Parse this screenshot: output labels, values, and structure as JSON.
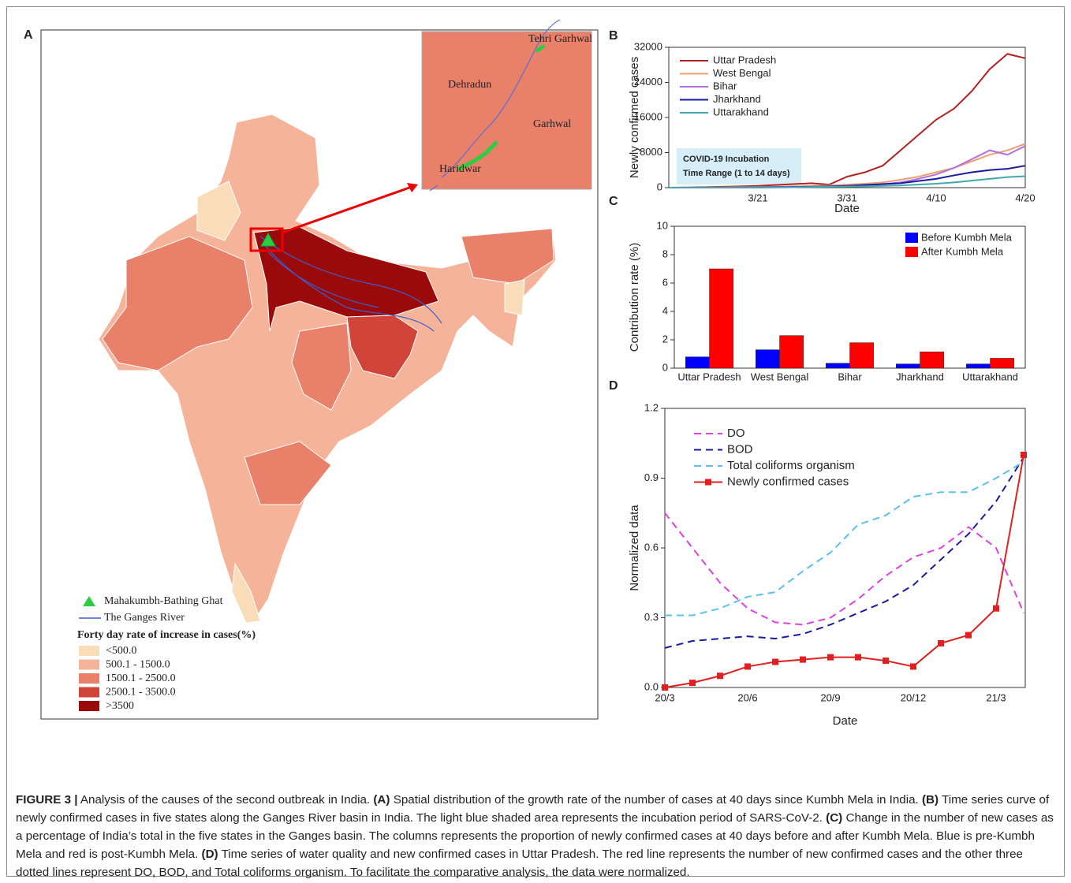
{
  "map": {
    "panel_label": "A",
    "inset_labels": [
      "Tehri Garhwal",
      "Dehradun",
      "Garhwal",
      "Haridwar"
    ],
    "ghat_label": "Mahakumbh-Bathing Ghat",
    "river_label": "The Ganges River",
    "legend_title": "Forty day rate of increase in cases(%)",
    "classes": [
      {
        "label": "<500.0",
        "color": "#f9ddb8"
      },
      {
        "label": "500.1 - 1500.0",
        "color": "#f5b49a"
      },
      {
        "label": "1500.1 - 2500.0",
        "color": "#e8806a"
      },
      {
        "label": "2500.1 - 3500.0",
        "color": "#d0443a"
      },
      {
        "label": ">3500",
        "color": "#9b0a0a"
      }
    ]
  },
  "chart_data": [
    {
      "type": "line",
      "panel_label": "B",
      "y_label": "Newly confirmed cases",
      "x_label": "Date",
      "annotation": [
        "COVID-19 Incubation",
        "Time Range (1 to 14 days)"
      ],
      "categories": [
        null,
        null,
        null,
        null,
        null,
        "3/21",
        null,
        null,
        null,
        null,
        "3/31",
        null,
        null,
        null,
        null,
        "4/10",
        null,
        null,
        null,
        null,
        "4/20"
      ],
      "ylim": [
        0,
        32000
      ],
      "yticks": [
        0,
        8000,
        16000,
        24000,
        32000
      ],
      "series": [
        {
          "name": "Uttar Pradesh",
          "color": "#b22222",
          "values": [
            0,
            50,
            100,
            200,
            300,
            400,
            600,
            800,
            1000,
            700,
            2500,
            3500,
            5000,
            8500,
            12000,
            15500,
            18000,
            22000,
            27000,
            30500,
            29500
          ]
        },
        {
          "name": "West Bengal",
          "color": "#f0a070",
          "values": [
            0,
            0,
            0,
            50,
            100,
            150,
            200,
            300,
            400,
            500,
            700,
            900,
            1200,
            1800,
            2500,
            3500,
            4500,
            6000,
            7500,
            8500,
            10000
          ]
        },
        {
          "name": "Bihar",
          "color": "#b070e0",
          "values": [
            0,
            0,
            0,
            0,
            50,
            100,
            150,
            200,
            200,
            300,
            400,
            500,
            800,
            1200,
            2000,
            3000,
            4500,
            6500,
            8500,
            7500,
            9500
          ]
        },
        {
          "name": "Jharkhand",
          "color": "#1a1aa0",
          "values": [
            0,
            0,
            0,
            0,
            0,
            50,
            100,
            150,
            200,
            300,
            400,
            600,
            800,
            1000,
            1500,
            2000,
            2800,
            3500,
            4000,
            4300,
            5000
          ]
        },
        {
          "name": "Uttarakhand",
          "color": "#40a8b0",
          "values": [
            0,
            0,
            0,
            0,
            0,
            0,
            50,
            100,
            150,
            200,
            250,
            300,
            400,
            500,
            700,
            900,
            1200,
            1600,
            2000,
            2400,
            2600
          ]
        }
      ]
    },
    {
      "type": "bar",
      "panel_label": "C",
      "y_label": "Contribution rate (%)",
      "categories": [
        "Uttar Pradesh",
        "West Bengal",
        "Bihar",
        "Jharkhand",
        "Uttarakhand"
      ],
      "ylim": [
        0,
        10
      ],
      "yticks": [
        0,
        2,
        4,
        6,
        8,
        10
      ],
      "series": [
        {
          "name": "Before Kumbh Mela",
          "color": "#0000ff",
          "values": [
            0.8,
            1.3,
            0.35,
            0.3,
            0.3
          ]
        },
        {
          "name": "After Kumbh Mela",
          "color": "#ff0000",
          "values": [
            7.0,
            2.3,
            1.8,
            1.15,
            0.7
          ]
        }
      ]
    },
    {
      "type": "line",
      "panel_label": "D",
      "y_label": "Normalized data",
      "x_label": "Date",
      "categories": [
        "20/3",
        null,
        null,
        "20/6",
        null,
        null,
        "20/9",
        null,
        null,
        "20/12",
        null,
        null,
        "21/3",
        null
      ],
      "ylim": [
        0,
        1.2
      ],
      "yticks": [
        {
          "value": 0,
          "label": "0.0"
        },
        0.3,
        0.6,
        0.9,
        1.2
      ],
      "series": [
        {
          "name": "DO",
          "color": "#e040e0",
          "dashed": true,
          "values": [
            0.75,
            0.6,
            0.45,
            0.34,
            0.28,
            0.27,
            0.3,
            0.38,
            0.48,
            0.56,
            0.6,
            0.69,
            0.6,
            0.32
          ]
        },
        {
          "name": "BOD",
          "color": "#1a1aa0",
          "dashed": true,
          "values": [
            0.17,
            0.2,
            0.21,
            0.22,
            0.21,
            0.23,
            0.27,
            0.32,
            0.37,
            0.44,
            0.55,
            0.66,
            0.8,
            0.99
          ]
        },
        {
          "name": "Total coliforms organism",
          "color": "#5bc0eb",
          "dashed": true,
          "values": [
            0.31,
            0.31,
            0.34,
            0.39,
            0.41,
            0.5,
            0.58,
            0.7,
            0.74,
            0.82,
            0.84,
            0.84,
            0.9,
            0.97
          ]
        },
        {
          "name": "Newly confirmed cases",
          "color": "#e02020",
          "marker": "square",
          "values": [
            0.0,
            0.02,
            0.05,
            0.09,
            0.11,
            0.12,
            0.13,
            0.13,
            0.115,
            0.09,
            0.19,
            0.225,
            0.34,
            1.0
          ]
        }
      ]
    }
  ],
  "caption": [
    {
      "text": "FIGURE 3 |",
      "bold": true
    },
    {
      "text": " Analysis of the causes of the second outbreak in India. "
    },
    {
      "text": "(A)",
      "bold": true
    },
    {
      "text": " Spatial distribution of the growth rate of the number of cases at 40 days since Kumbh Mela in India. "
    },
    {
      "text": "(B)",
      "bold": true
    },
    {
      "text": " Time series curve of newly confirmed cases in five states along the Ganges River basin in India. The light blue shaded area represents the incubation period of SARS-CoV-2. "
    },
    {
      "text": "(C)",
      "bold": true
    },
    {
      "text": " Change in the number of new cases as a percentage of India’s total in the five states in the Ganges basin. The columns represents the proportion of newly confirmed cases at 40 days before and after Kumbh Mela. Blue is pre-Kumbh Mela and red is post-Kumbh Mela. "
    },
    {
      "text": "(D)",
      "bold": true
    },
    {
      "text": " Time series of water quality and new confirmed cases in Uttar Pradesh. The red line represents the number of new confirmed cases and the other three dotted lines represent DO, BOD, and Total coliforms organism. To facilitate the comparative analysis, the data were normalized."
    }
  ]
}
